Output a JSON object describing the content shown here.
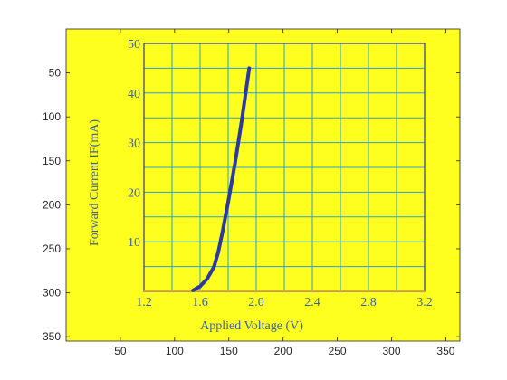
{
  "chart_data": {
    "type": "line",
    "outer_axes": {
      "x_ticks": [
        "50",
        "100",
        "150",
        "200",
        "250",
        "300",
        "350"
      ],
      "y_ticks": [
        "50",
        "100",
        "150",
        "200",
        "250",
        "300",
        "350"
      ],
      "xlim": [
        0,
        363
      ],
      "ylim": [
        0,
        355
      ],
      "y_reversed": true,
      "background": "#ffff1f"
    },
    "inner_plot": {
      "xlabel": "Applied Voltage  (V)",
      "ylabel": "Forward Current IF(mA)",
      "x_tick_labels": [
        "1.2",
        "1.6",
        "2.0",
        "2.4",
        "2.8",
        "3.2"
      ],
      "y_tick_labels": [
        "10",
        "20",
        "30",
        "40",
        "50"
      ],
      "x_gridlines": [
        1.2,
        1.4,
        1.6,
        1.8,
        2.0,
        2.2,
        2.4,
        2.6,
        2.8,
        3.0,
        3.2
      ],
      "y_gridlines": [
        5,
        10,
        15,
        20,
        25,
        30,
        35,
        40,
        45,
        50
      ],
      "xlim": [
        1.2,
        3.2
      ],
      "ylim": [
        0,
        50
      ],
      "grid": true,
      "colors": {
        "grid": "#2a9fd6",
        "curve": "#2b3aa0",
        "ref_line": "#f0a050",
        "text": "#3a5ea8"
      }
    },
    "series": [
      {
        "color": "#2b3aa0",
        "x": [
          1.55,
          1.6,
          1.65,
          1.7,
          1.73,
          1.76,
          1.8,
          1.85,
          1.9,
          1.95
        ],
        "y": [
          0.2,
          1,
          2.5,
          5,
          8,
          12,
          18,
          26,
          35,
          45
        ]
      }
    ],
    "reference_line": {
      "y": 5
    }
  }
}
